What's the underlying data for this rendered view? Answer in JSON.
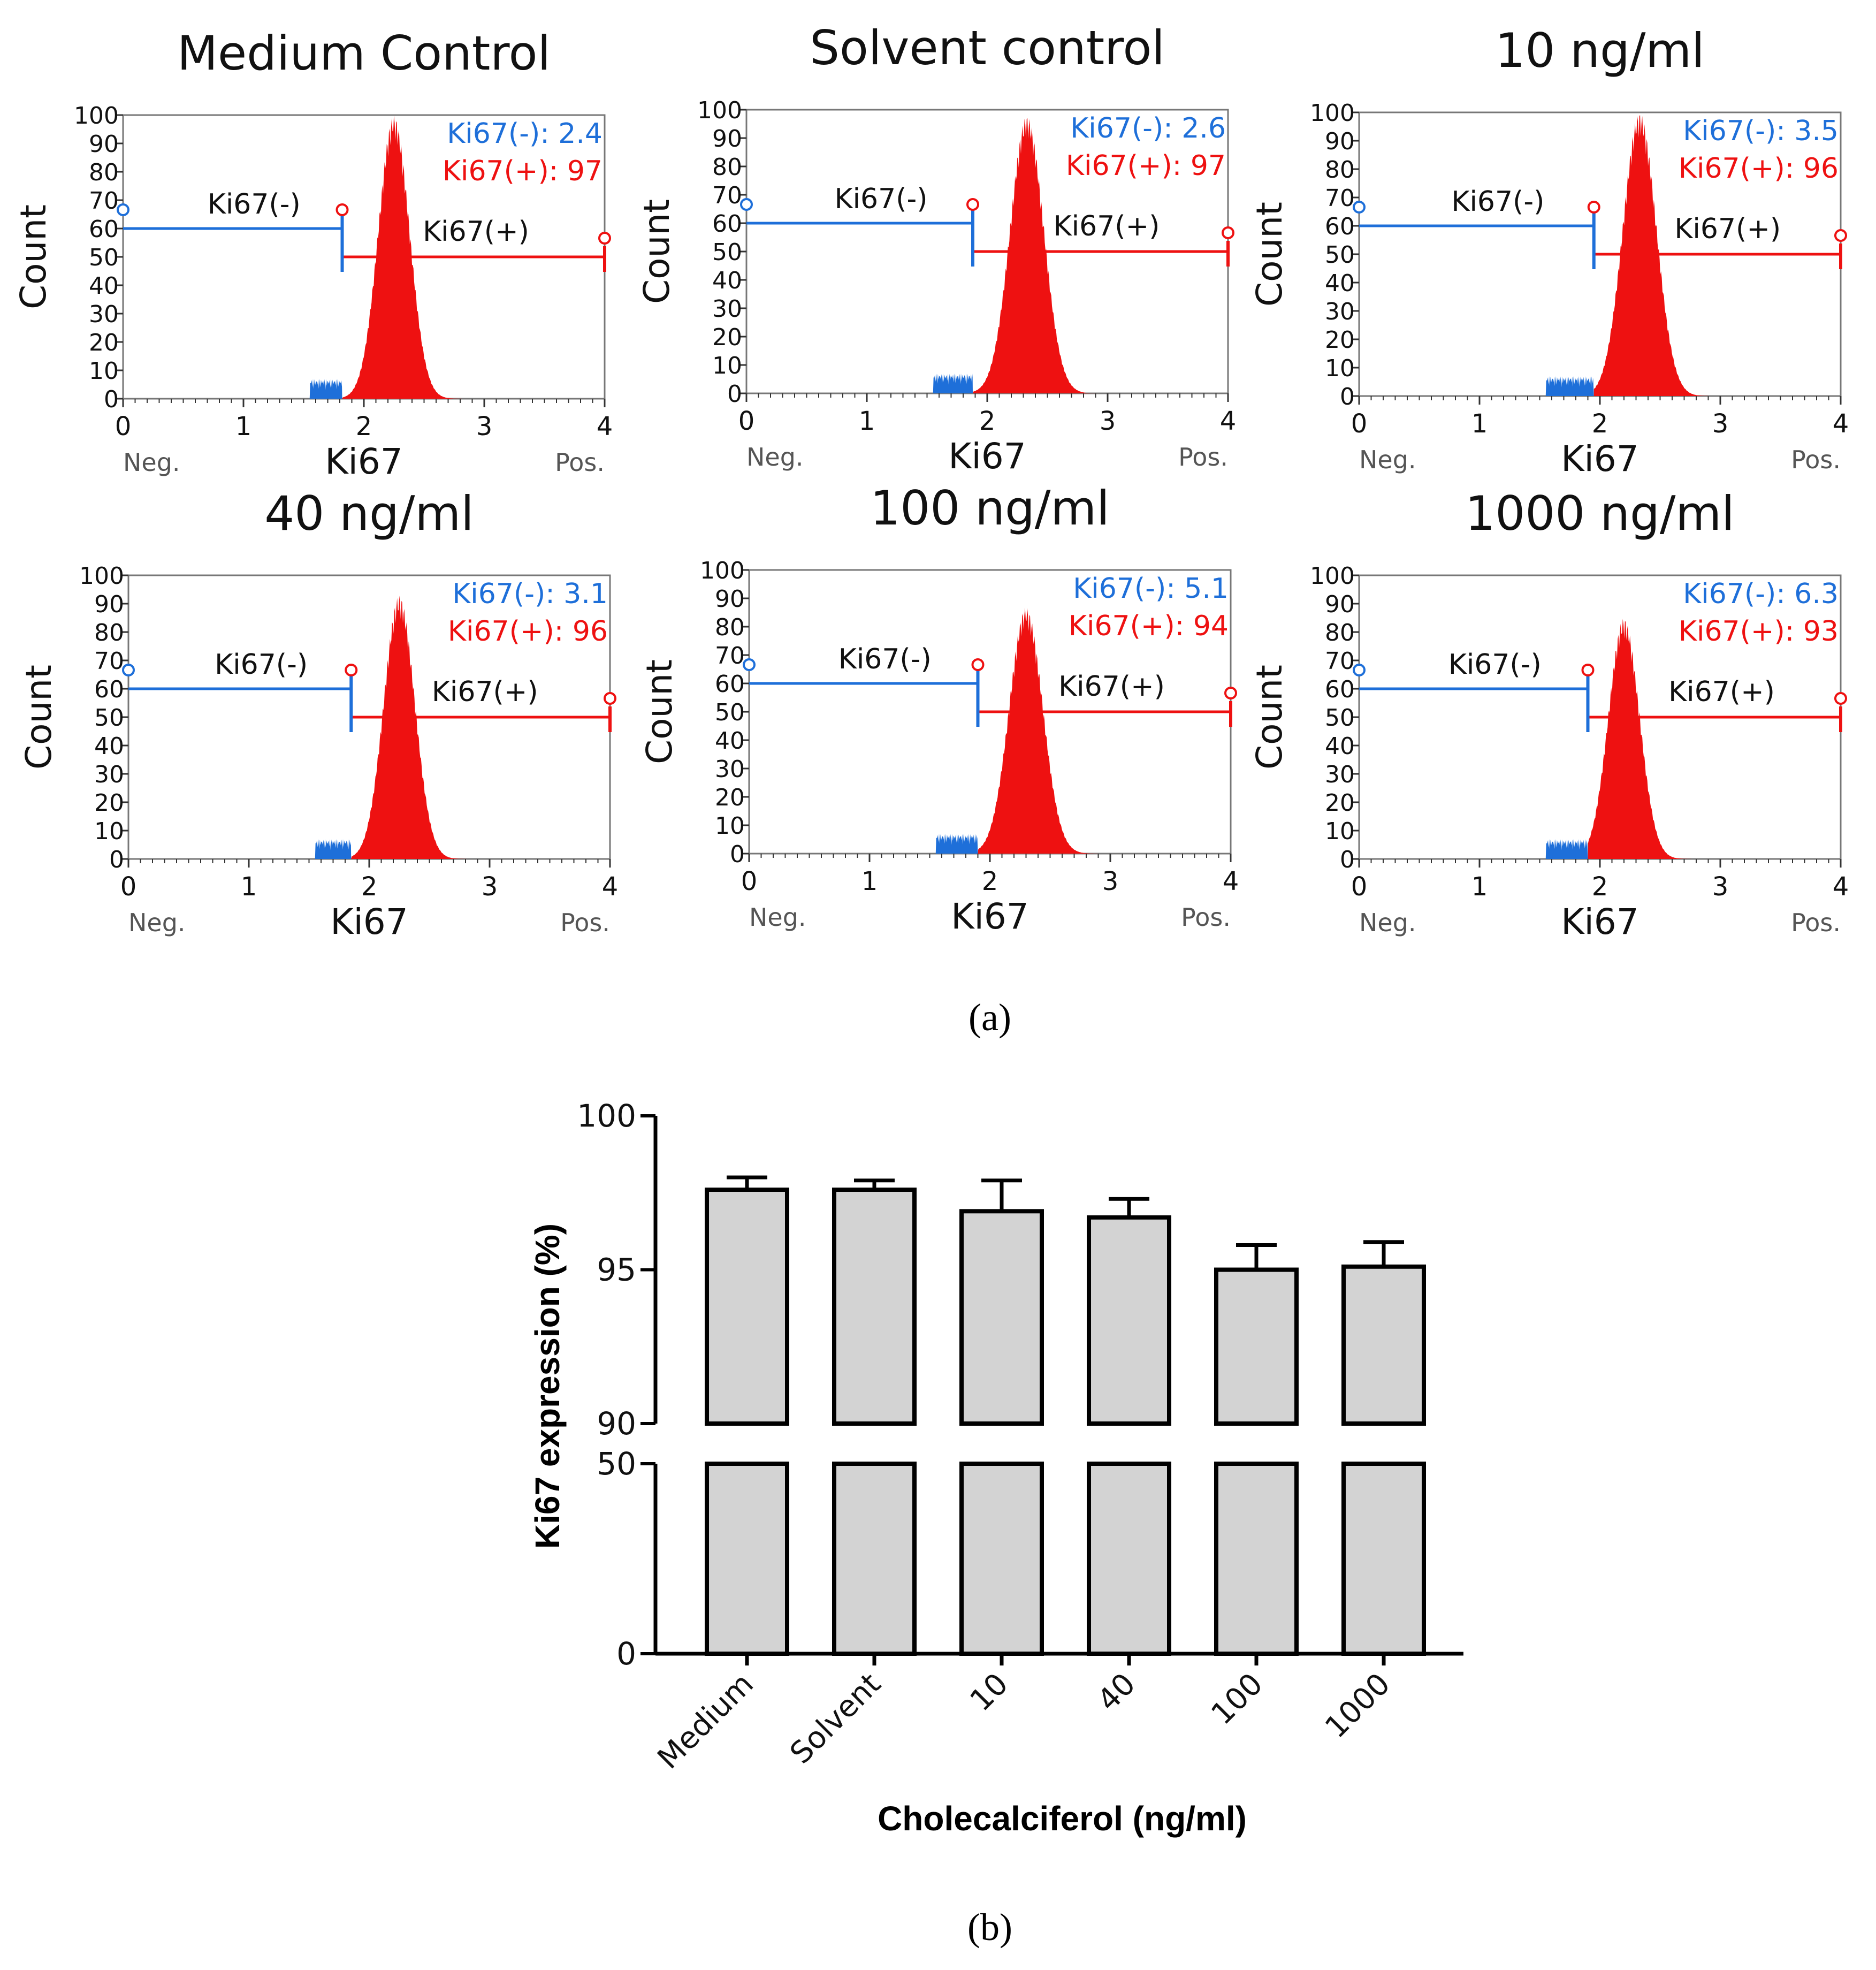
{
  "chart_data": [
    {
      "type": "histogram",
      "title": "Medium Control",
      "xlabel": "Ki67",
      "ylabel": "Count",
      "x_ticks": [
        "0",
        "1",
        "2",
        "3",
        "4"
      ],
      "y_ticks": [
        "0",
        "10",
        "20",
        "30",
        "40",
        "50",
        "60",
        "70",
        "80",
        "90",
        "100"
      ],
      "xlim": [
        0,
        4
      ],
      "ylim": [
        0,
        100
      ],
      "x_left_note": "Neg.",
      "x_right_note": "Pos.",
      "gate_neg_label": "Ki67(-)",
      "gate_pos_label": "Ki67(+)",
      "gate_boundary": 1.82,
      "peak_center": 2.25,
      "peak_width": 0.13,
      "peak_height": 100,
      "stat_neg": "Ki67(-): 2.4",
      "stat_pos": "Ki67(+): 97"
    },
    {
      "type": "histogram",
      "title": "Solvent control",
      "xlabel": "Ki67",
      "ylabel": "Count",
      "x_ticks": [
        "0",
        "1",
        "2",
        "3",
        "4"
      ],
      "y_ticks": [
        "0",
        "10",
        "20",
        "30",
        "40",
        "50",
        "60",
        "70",
        "80",
        "90",
        "100"
      ],
      "xlim": [
        0,
        4
      ],
      "ylim": [
        0,
        100
      ],
      "x_left_note": "Neg.",
      "x_right_note": "Pos.",
      "gate_neg_label": "Ki67(-)",
      "gate_pos_label": "Ki67(+)",
      "gate_boundary": 1.88,
      "peak_center": 2.33,
      "peak_width": 0.14,
      "peak_height": 98,
      "stat_neg": "Ki67(-): 2.6",
      "stat_pos": "Ki67(+): 97"
    },
    {
      "type": "histogram",
      "title": "10 ng/ml",
      "xlabel": "Ki67",
      "ylabel": "Count",
      "x_ticks": [
        "0",
        "1",
        "2",
        "3",
        "4"
      ],
      "y_ticks": [
        "0",
        "10",
        "20",
        "30",
        "40",
        "50",
        "60",
        "70",
        "80",
        "90",
        "100"
      ],
      "xlim": [
        0,
        4
      ],
      "ylim": [
        0,
        100
      ],
      "x_left_note": "Neg.",
      "x_right_note": "Pos.",
      "gate_neg_label": "Ki67(-)",
      "gate_pos_label": "Ki67(+)",
      "gate_boundary": 1.95,
      "peak_center": 2.33,
      "peak_width": 0.14,
      "peak_height": 100,
      "stat_neg": "Ki67(-): 3.5",
      "stat_pos": "Ki67(+): 96"
    },
    {
      "type": "histogram",
      "title": "40 ng/ml",
      "xlabel": "Ki67",
      "ylabel": "Count",
      "x_ticks": [
        "0",
        "1",
        "2",
        "3",
        "4"
      ],
      "y_ticks": [
        "0",
        "10",
        "20",
        "30",
        "40",
        "50",
        "60",
        "70",
        "80",
        "90",
        "100"
      ],
      "xlim": [
        0,
        4
      ],
      "ylim": [
        0,
        100
      ],
      "x_left_note": "Neg.",
      "x_right_note": "Pos.",
      "gate_neg_label": "Ki67(-)",
      "gate_pos_label": "Ki67(+)",
      "gate_boundary": 1.85,
      "peak_center": 2.25,
      "peak_width": 0.13,
      "peak_height": 93,
      "stat_neg": "Ki67(-): 3.1",
      "stat_pos": "Ki67(+): 96"
    },
    {
      "type": "histogram",
      "title": "100 ng/ml",
      "xlabel": "Ki67",
      "ylabel": "Count",
      "x_ticks": [
        "0",
        "1",
        "2",
        "3",
        "4"
      ],
      "y_ticks": [
        "0",
        "10",
        "20",
        "30",
        "40",
        "50",
        "60",
        "70",
        "80",
        "90",
        "100"
      ],
      "xlim": [
        0,
        4
      ],
      "ylim": [
        0,
        100
      ],
      "x_left_note": "Neg.",
      "x_right_note": "Pos.",
      "gate_neg_label": "Ki67(-)",
      "gate_pos_label": "Ki67(+)",
      "gate_boundary": 1.9,
      "peak_center": 2.3,
      "peak_width": 0.14,
      "peak_height": 87,
      "stat_neg": "Ki67(-): 5.1",
      "stat_pos": "Ki67(+): 94"
    },
    {
      "type": "histogram",
      "title": "1000 ng/ml",
      "xlabel": "Ki67",
      "ylabel": "Count",
      "x_ticks": [
        "0",
        "1",
        "2",
        "3",
        "4"
      ],
      "y_ticks": [
        "0",
        "10",
        "20",
        "30",
        "40",
        "50",
        "60",
        "70",
        "80",
        "90",
        "100"
      ],
      "xlim": [
        0,
        4
      ],
      "ylim": [
        0,
        100
      ],
      "x_left_note": "Neg.",
      "x_right_note": "Pos.",
      "gate_neg_label": "Ki67(-)",
      "gate_pos_label": "Ki67(+)",
      "gate_boundary": 1.9,
      "peak_center": 2.2,
      "peak_width": 0.13,
      "peak_height": 85,
      "stat_neg": "Ki67(-): 6.3",
      "stat_pos": "Ki67(+): 93"
    },
    {
      "type": "bar",
      "title": "",
      "xlabel": "Cholecalciferol (ng/ml)",
      "ylabel": "Ki67 expression (%)",
      "categories": [
        "Medium",
        "Solvent",
        "10",
        "40",
        "100",
        "1000"
      ],
      "values": [
        97.6,
        97.6,
        96.9,
        96.7,
        95.0,
        95.1
      ],
      "errors": [
        0.4,
        0.3,
        1.0,
        0.6,
        0.8,
        0.8
      ],
      "broken_axis": true,
      "ylim_lower": [
        0,
        50
      ],
      "ylim_upper": [
        90,
        100
      ],
      "y_ticks_lower": [
        "0",
        "50"
      ],
      "y_ticks_upper": [
        "90",
        "95",
        "100"
      ]
    }
  ],
  "colors": {
    "negative": "#1e6fd9",
    "positive": "#ee1111",
    "bar_fill": "#d3d3d3",
    "axis": "#000000"
  },
  "labels": {
    "panel_a": "(a)",
    "panel_b": "(b)"
  }
}
